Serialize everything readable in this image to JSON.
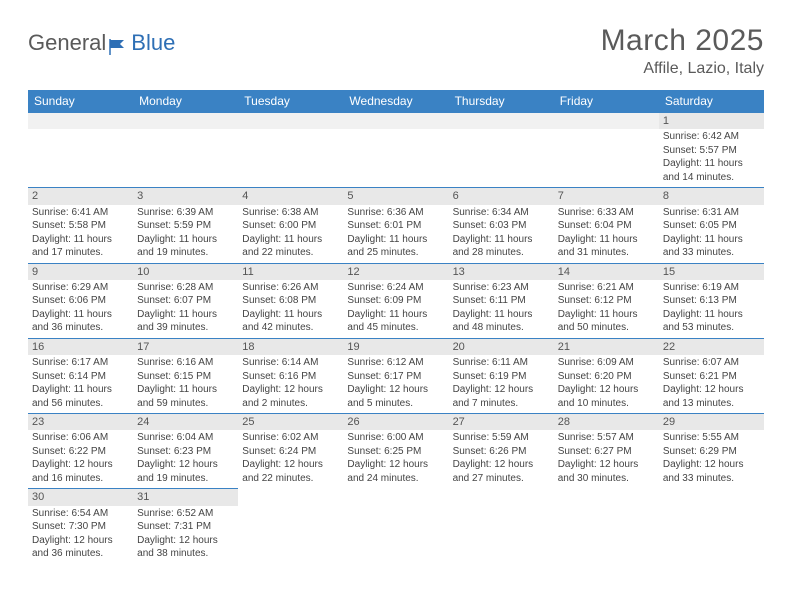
{
  "logo": {
    "general": "General",
    "blue": "Blue"
  },
  "title": "March 2025",
  "location": "Affile, Lazio, Italy",
  "colors": {
    "header_bg": "#3a82c4",
    "header_text": "#ffffff",
    "daynum_bg": "#e8e8e8",
    "border": "#3a82c4",
    "text": "#444444",
    "title_text": "#5a5a5a"
  },
  "columns": [
    "Sunday",
    "Monday",
    "Tuesday",
    "Wednesday",
    "Thursday",
    "Friday",
    "Saturday"
  ],
  "weeks": [
    [
      null,
      null,
      null,
      null,
      null,
      null,
      {
        "n": "1",
        "rise": "6:42 AM",
        "set": "5:57 PM",
        "dl": "11 hours and 14 minutes."
      }
    ],
    [
      {
        "n": "2",
        "rise": "6:41 AM",
        "set": "5:58 PM",
        "dl": "11 hours and 17 minutes."
      },
      {
        "n": "3",
        "rise": "6:39 AM",
        "set": "5:59 PM",
        "dl": "11 hours and 19 minutes."
      },
      {
        "n": "4",
        "rise": "6:38 AM",
        "set": "6:00 PM",
        "dl": "11 hours and 22 minutes."
      },
      {
        "n": "5",
        "rise": "6:36 AM",
        "set": "6:01 PM",
        "dl": "11 hours and 25 minutes."
      },
      {
        "n": "6",
        "rise": "6:34 AM",
        "set": "6:03 PM",
        "dl": "11 hours and 28 minutes."
      },
      {
        "n": "7",
        "rise": "6:33 AM",
        "set": "6:04 PM",
        "dl": "11 hours and 31 minutes."
      },
      {
        "n": "8",
        "rise": "6:31 AM",
        "set": "6:05 PM",
        "dl": "11 hours and 33 minutes."
      }
    ],
    [
      {
        "n": "9",
        "rise": "6:29 AM",
        "set": "6:06 PM",
        "dl": "11 hours and 36 minutes."
      },
      {
        "n": "10",
        "rise": "6:28 AM",
        "set": "6:07 PM",
        "dl": "11 hours and 39 minutes."
      },
      {
        "n": "11",
        "rise": "6:26 AM",
        "set": "6:08 PM",
        "dl": "11 hours and 42 minutes."
      },
      {
        "n": "12",
        "rise": "6:24 AM",
        "set": "6:09 PM",
        "dl": "11 hours and 45 minutes."
      },
      {
        "n": "13",
        "rise": "6:23 AM",
        "set": "6:11 PM",
        "dl": "11 hours and 48 minutes."
      },
      {
        "n": "14",
        "rise": "6:21 AM",
        "set": "6:12 PM",
        "dl": "11 hours and 50 minutes."
      },
      {
        "n": "15",
        "rise": "6:19 AM",
        "set": "6:13 PM",
        "dl": "11 hours and 53 minutes."
      }
    ],
    [
      {
        "n": "16",
        "rise": "6:17 AM",
        "set": "6:14 PM",
        "dl": "11 hours and 56 minutes."
      },
      {
        "n": "17",
        "rise": "6:16 AM",
        "set": "6:15 PM",
        "dl": "11 hours and 59 minutes."
      },
      {
        "n": "18",
        "rise": "6:14 AM",
        "set": "6:16 PM",
        "dl": "12 hours and 2 minutes."
      },
      {
        "n": "19",
        "rise": "6:12 AM",
        "set": "6:17 PM",
        "dl": "12 hours and 5 minutes."
      },
      {
        "n": "20",
        "rise": "6:11 AM",
        "set": "6:19 PM",
        "dl": "12 hours and 7 minutes."
      },
      {
        "n": "21",
        "rise": "6:09 AM",
        "set": "6:20 PM",
        "dl": "12 hours and 10 minutes."
      },
      {
        "n": "22",
        "rise": "6:07 AM",
        "set": "6:21 PM",
        "dl": "12 hours and 13 minutes."
      }
    ],
    [
      {
        "n": "23",
        "rise": "6:06 AM",
        "set": "6:22 PM",
        "dl": "12 hours and 16 minutes."
      },
      {
        "n": "24",
        "rise": "6:04 AM",
        "set": "6:23 PM",
        "dl": "12 hours and 19 minutes."
      },
      {
        "n": "25",
        "rise": "6:02 AM",
        "set": "6:24 PM",
        "dl": "12 hours and 22 minutes."
      },
      {
        "n": "26",
        "rise": "6:00 AM",
        "set": "6:25 PM",
        "dl": "12 hours and 24 minutes."
      },
      {
        "n": "27",
        "rise": "5:59 AM",
        "set": "6:26 PM",
        "dl": "12 hours and 27 minutes."
      },
      {
        "n": "28",
        "rise": "5:57 AM",
        "set": "6:27 PM",
        "dl": "12 hours and 30 minutes."
      },
      {
        "n": "29",
        "rise": "5:55 AM",
        "set": "6:29 PM",
        "dl": "12 hours and 33 minutes."
      }
    ],
    [
      {
        "n": "30",
        "rise": "6:54 AM",
        "set": "7:30 PM",
        "dl": "12 hours and 36 minutes."
      },
      {
        "n": "31",
        "rise": "6:52 AM",
        "set": "7:31 PM",
        "dl": "12 hours and 38 minutes."
      },
      null,
      null,
      null,
      null,
      null
    ]
  ],
  "labels": {
    "sunrise": "Sunrise:",
    "sunset": "Sunset:",
    "daylight": "Daylight:"
  }
}
